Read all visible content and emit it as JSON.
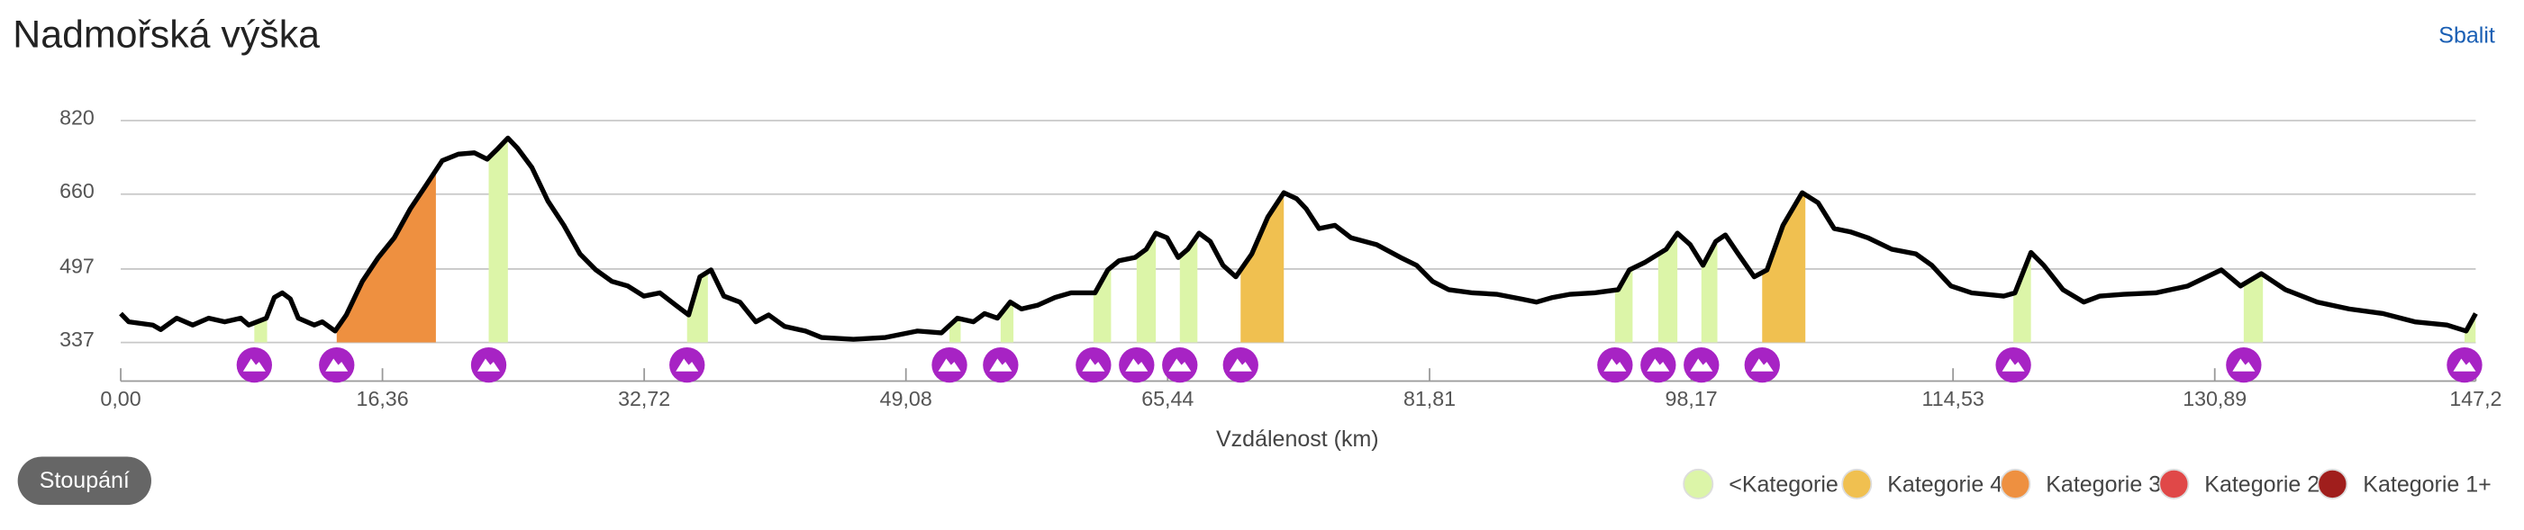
{
  "header": {
    "title": "Nadmořská výška",
    "collapse": "Sbalit"
  },
  "button": "Stoupání",
  "chart_data": {
    "type": "line",
    "x_label": "Vzdálenost (km)",
    "color": "#000000",
    "xlim": [
      0,
      147.2
    ],
    "ylim": [
      337,
      820
    ],
    "grid": true,
    "xticks": [
      {
        "value": 0,
        "label": "0,00"
      },
      {
        "value": 16.36,
        "label": "16,36"
      },
      {
        "value": 32.72,
        "label": "32,72"
      },
      {
        "value": 49.08,
        "label": "49,08"
      },
      {
        "value": 65.44,
        "label": "65,44"
      },
      {
        "value": 81.81,
        "label": "81,81"
      },
      {
        "value": 98.17,
        "label": "98,17"
      },
      {
        "value": 114.53,
        "label": "114,53"
      },
      {
        "value": 130.89,
        "label": "130,89"
      },
      {
        "value": 147.2,
        "label": "147,2"
      }
    ],
    "yticks": [
      337,
      497,
      660,
      820
    ],
    "x": [
      0,
      0.5,
      2.0,
      2.5,
      3.5,
      4.5,
      5.5,
      6.5,
      7.5,
      8.0,
      9.1,
      9.6,
      10.1,
      10.6,
      11.1,
      12.1,
      12.6,
      13.4,
      14.1,
      15.1,
      16.1,
      17.1,
      18.1,
      19.1,
      20.1,
      21.1,
      22.1,
      22.9,
      23.6,
      24.2,
      24.8,
      25.7,
      26.7,
      27.7,
      28.7,
      29.7,
      30.7,
      31.7,
      32.7,
      33.7,
      34.7,
      35.5,
      36.2,
      36.9,
      37.7,
      38.7,
      39.7,
      40.5,
      41.5,
      42.8,
      43.8,
      45.8,
      47.8,
      49.8,
      51.3,
      52.3,
      53.3,
      54.0,
      54.8,
      55.6,
      56.3,
      57.3,
      58.4,
      59.4,
      60.9,
      61.7,
      62.4,
      63.4,
      64.1,
      64.7,
      65.4,
      66.1,
      66.7,
      67.4,
      68.1,
      68.9,
      69.7,
      70.7,
      71.7,
      72.7,
      73.5,
      74.1,
      74.9,
      75.9,
      76.9,
      78.5,
      80.0,
      81.0,
      82.0,
      83.0,
      84.5,
      86.0,
      87.5,
      88.5,
      89.5,
      90.6,
      92.1,
      93.6,
      94.3,
      95.3,
      96.6,
      97.3,
      98.1,
      98.9,
      99.7,
      100.3,
      101.1,
      102.1,
      102.9,
      103.9,
      105.1,
      106.1,
      107.1,
      108.1,
      109.2,
      110.7,
      112.2,
      113.2,
      114.4,
      115.7,
      117.7,
      118.4,
      119.4,
      120.2,
      121.4,
      122.7,
      123.7,
      125.2,
      127.2,
      129.2,
      131.3,
      132.5,
      133.8,
      135.3,
      137.3,
      139.3,
      141.4,
      143.4,
      145.4,
      146.6,
      147.2
    ],
    "values": [
      400,
      382,
      375,
      365,
      390,
      375,
      390,
      382,
      390,
      375,
      390,
      435,
      445,
      432,
      390,
      375,
      382,
      362,
      397,
      470,
      522,
      565,
      628,
      680,
      733,
      747,
      750,
      736,
      760,
      782,
      760,
      718,
      645,
      592,
      530,
      495,
      470,
      460,
      438,
      445,
      418,
      397,
      480,
      495,
      438,
      425,
      382,
      397,
      372,
      362,
      348,
      344,
      348,
      362,
      358,
      390,
      382,
      400,
      390,
      425,
      410,
      418,
      435,
      445,
      445,
      495,
      515,
      522,
      540,
      575,
      565,
      522,
      540,
      575,
      557,
      505,
      480,
      530,
      610,
      663,
      650,
      628,
      585,
      592,
      565,
      550,
      522,
      505,
      470,
      452,
      445,
      442,
      432,
      425,
      435,
      442,
      445,
      452,
      495,
      512,
      540,
      575,
      550,
      505,
      557,
      571,
      530,
      480,
      495,
      592,
      663,
      641,
      585,
      578,
      565,
      540,
      530,
      505,
      460,
      445,
      438,
      445,
      533,
      505,
      452,
      425,
      438,
      442,
      445,
      460,
      495,
      460,
      487,
      452,
      425,
      410,
      400,
      382,
      375,
      362,
      400
    ],
    "climbs": [
      {
        "start": 8.35,
        "end": 9.15,
        "color": "#dcf5a8"
      },
      {
        "start": 13.5,
        "end": 19.7,
        "color": "#ee9040"
      },
      {
        "start": 23.0,
        "end": 24.2,
        "color": "#dcf5a8"
      },
      {
        "start": 35.4,
        "end": 36.7,
        "color": "#dcf5a8"
      },
      {
        "start": 51.8,
        "end": 52.5,
        "color": "#dcf5a8"
      },
      {
        "start": 55.0,
        "end": 55.8,
        "color": "#dcf5a8"
      },
      {
        "start": 60.8,
        "end": 61.9,
        "color": "#dcf5a8"
      },
      {
        "start": 63.5,
        "end": 64.7,
        "color": "#dcf5a8"
      },
      {
        "start": 66.2,
        "end": 67.3,
        "color": "#dcf5a8"
      },
      {
        "start": 70.0,
        "end": 72.7,
        "color": "#f0c050"
      },
      {
        "start": 93.4,
        "end": 94.5,
        "color": "#dcf5a8"
      },
      {
        "start": 96.1,
        "end": 97.3,
        "color": "#dcf5a8"
      },
      {
        "start": 98.8,
        "end": 99.8,
        "color": "#dcf5a8"
      },
      {
        "start": 102.6,
        "end": 105.3,
        "color": "#f0c050"
      },
      {
        "start": 118.3,
        "end": 119.4,
        "color": "#dcf5a8"
      },
      {
        "start": 132.7,
        "end": 133.9,
        "color": "#dcf5a8"
      },
      {
        "start": 146.5,
        "end": 147.2,
        "color": "#dcf5a8"
      }
    ],
    "legend": [
      {
        "name": "<Kategorie 4",
        "color": "#dcf5a8"
      },
      {
        "name": "Kategorie 4",
        "color": "#f0c050"
      },
      {
        "name": "Kategorie 3",
        "color": "#ee9040"
      },
      {
        "name": "Kategorie 2",
        "color": "#e04848"
      },
      {
        "name": "Kategorie 1+",
        "color": "#a01e1c"
      }
    ]
  }
}
